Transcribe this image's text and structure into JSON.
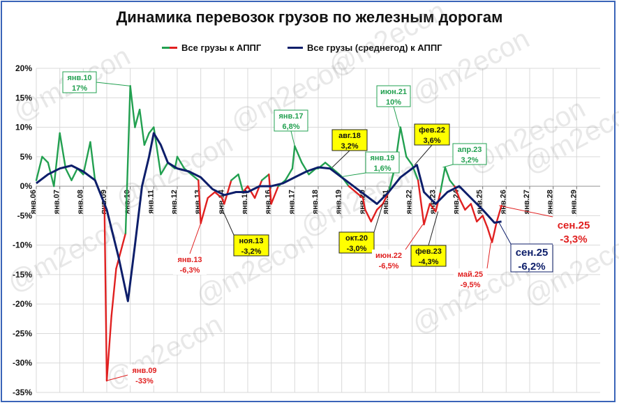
{
  "chart_data": {
    "type": "line",
    "title": "Динамика перевозок грузов по железным дорогам",
    "legend_position": "top",
    "grid": true,
    "ylim": [
      -35,
      20
    ],
    "y_ticks": [
      "20%",
      "15%",
      "10%",
      "5%",
      "0%",
      "-5%",
      "-10%",
      "-15%",
      "-20%",
      "-25%",
      "-30%",
      "-35%"
    ],
    "x_tick_labels": [
      "янв.06",
      "янв.07",
      "янв.08",
      "янв.09",
      "янв.10",
      "янв.11",
      "янв.12",
      "янв.13",
      "янв.14",
      "янв.15",
      "янв.16",
      "янв.17",
      "янв.18",
      "янв.19",
      "янв.20",
      "янв.21",
      "янв.22",
      "янв.23",
      "янв.24",
      "янв.25",
      "янв.26",
      "янв.27",
      "янв.28",
      "янв.29"
    ],
    "series": [
      {
        "name": "Все грузы к АППГ",
        "segment_colors": {
          "positive": "#22a050",
          "negative": "#e02020"
        },
        "points": [
          [
            2006.0,
            1
          ],
          [
            2006.25,
            5
          ],
          [
            2006.5,
            4
          ],
          [
            2006.75,
            0
          ],
          [
            2007.0,
            9
          ],
          [
            2007.25,
            3
          ],
          [
            2007.5,
            1
          ],
          [
            2007.75,
            3
          ],
          [
            2008.0,
            2
          ],
          [
            2008.3,
            7.5
          ],
          [
            2008.5,
            1
          ],
          [
            2008.7,
            -1
          ],
          [
            2008.9,
            -3
          ],
          [
            2009.0,
            -33
          ],
          [
            2009.2,
            -22
          ],
          [
            2009.4,
            -14
          ],
          [
            2009.6,
            -11
          ],
          [
            2009.8,
            -8
          ],
          [
            2010.0,
            17
          ],
          [
            2010.2,
            10
          ],
          [
            2010.4,
            13
          ],
          [
            2010.6,
            7
          ],
          [
            2010.8,
            9
          ],
          [
            2011.0,
            10
          ],
          [
            2011.3,
            2
          ],
          [
            2011.6,
            4
          ],
          [
            2011.9,
            3
          ],
          [
            2012.0,
            5
          ],
          [
            2012.3,
            3
          ],
          [
            2012.6,
            2
          ],
          [
            2012.9,
            1
          ],
          [
            2013.0,
            -6.3
          ],
          [
            2013.3,
            -2
          ],
          [
            2013.6,
            -1
          ],
          [
            2013.9,
            -2
          ],
          [
            2014.0,
            -3
          ],
          [
            2014.3,
            1
          ],
          [
            2014.6,
            2
          ],
          [
            2014.8,
            -1
          ],
          [
            2015.0,
            0
          ],
          [
            2015.3,
            -2
          ],
          [
            2015.6,
            1
          ],
          [
            2015.9,
            2
          ],
          [
            2016.0,
            -3
          ],
          [
            2016.3,
            0
          ],
          [
            2016.6,
            1
          ],
          [
            2016.9,
            3
          ],
          [
            2017.0,
            6.8
          ],
          [
            2017.3,
            4
          ],
          [
            2017.6,
            2
          ],
          [
            2017.9,
            3
          ],
          [
            2018.0,
            3
          ],
          [
            2018.3,
            4
          ],
          [
            2018.6,
            3
          ],
          [
            2018.9,
            2
          ],
          [
            2019.0,
            1.6
          ],
          [
            2019.3,
            0
          ],
          [
            2019.6,
            -1
          ],
          [
            2019.9,
            -2
          ],
          [
            2020.0,
            -4
          ],
          [
            2020.25,
            -6
          ],
          [
            2020.5,
            -4
          ],
          [
            2020.75,
            -3
          ],
          [
            2021.0,
            -1
          ],
          [
            2021.25,
            3
          ],
          [
            2021.5,
            10
          ],
          [
            2021.75,
            5
          ],
          [
            2022.0,
            3.6
          ],
          [
            2022.25,
            1
          ],
          [
            2022.5,
            -6.5
          ],
          [
            2022.75,
            -3
          ],
          [
            2023.0,
            -4.3
          ],
          [
            2023.2,
            -1
          ],
          [
            2023.4,
            3.2
          ],
          [
            2023.6,
            1
          ],
          [
            2023.8,
            0
          ],
          [
            2024.0,
            -2
          ],
          [
            2024.25,
            -4
          ],
          [
            2024.5,
            -3
          ],
          [
            2024.75,
            -6
          ],
          [
            2025.0,
            -5
          ],
          [
            2025.2,
            -7
          ],
          [
            2025.4,
            -9.5
          ],
          [
            2025.6,
            -6
          ],
          [
            2025.8,
            -3.3
          ]
        ]
      },
      {
        "name": "Все грузы (среднегод) к АППГ",
        "color": "#0d1e6a",
        "points": [
          [
            2006.0,
            0.5
          ],
          [
            2006.5,
            2
          ],
          [
            2007.0,
            3
          ],
          [
            2007.5,
            3.5
          ],
          [
            2008.0,
            2.5
          ],
          [
            2008.5,
            1
          ],
          [
            2009.0,
            -4
          ],
          [
            2009.5,
            -12
          ],
          [
            2009.9,
            -19.5
          ],
          [
            2010.2,
            -10
          ],
          [
            2010.5,
            0
          ],
          [
            2010.8,
            5
          ],
          [
            2011.0,
            9
          ],
          [
            2011.3,
            7
          ],
          [
            2011.6,
            4
          ],
          [
            2012.0,
            3
          ],
          [
            2012.5,
            2.5
          ],
          [
            2013.0,
            1.5
          ],
          [
            2013.5,
            -0.5
          ],
          [
            2014.0,
            -1.5
          ],
          [
            2014.5,
            -1
          ],
          [
            2015.0,
            -1
          ],
          [
            2015.5,
            0
          ],
          [
            2016.0,
            0
          ],
          [
            2016.5,
            0.5
          ],
          [
            2017.0,
            1.5
          ],
          [
            2017.5,
            2.5
          ],
          [
            2018.0,
            3.2
          ],
          [
            2018.5,
            3
          ],
          [
            2019.0,
            1.5
          ],
          [
            2019.5,
            0
          ],
          [
            2020.0,
            -1.5
          ],
          [
            2020.5,
            -3.0
          ],
          [
            2021.0,
            -1
          ],
          [
            2021.5,
            1.5
          ],
          [
            2022.0,
            3
          ],
          [
            2022.2,
            3.6
          ],
          [
            2022.5,
            -1
          ],
          [
            2023.0,
            -3
          ],
          [
            2023.5,
            -1
          ],
          [
            2024.0,
            0
          ],
          [
            2024.5,
            -2
          ],
          [
            2025.0,
            -4
          ],
          [
            2025.5,
            -6.2
          ],
          [
            2025.8,
            -6
          ]
        ]
      }
    ],
    "annotations": [
      {
        "id": "ann-jan10",
        "lines": [
          "янв.10",
          "17%"
        ],
        "x": 2010.0,
        "y": 17,
        "style": "green"
      },
      {
        "id": "ann-jan09",
        "lines": [
          "янв.09",
          "-33%"
        ],
        "x": 2009.0,
        "y": -33,
        "style": "red"
      },
      {
        "id": "ann-jan13",
        "lines": [
          "янв.13",
          "-6,3%"
        ],
        "x": 2013.0,
        "y": -6.3,
        "style": "red"
      },
      {
        "id": "ann-nov13",
        "lines": [
          "ноя.13",
          "-3,2%"
        ],
        "x": 2013.83,
        "y": -3.2,
        "style": "yellow"
      },
      {
        "id": "ann-jan17",
        "lines": [
          "янв.17",
          "6,8%"
        ],
        "x": 2017.0,
        "y": 6.8,
        "style": "green"
      },
      {
        "id": "ann-aug18",
        "lines": [
          "авг.18",
          "3,2%"
        ],
        "x": 2018.6,
        "y": 3.2,
        "style": "yellow"
      },
      {
        "id": "ann-jan19",
        "lines": [
          "янв.19",
          "1,6%"
        ],
        "x": 2019.0,
        "y": 1.6,
        "style": "green"
      },
      {
        "id": "ann-oct20",
        "lines": [
          "окт.20",
          "-3,0%"
        ],
        "x": 2020.75,
        "y": -3.0,
        "style": "yellow"
      },
      {
        "id": "ann-jun21",
        "lines": [
          "июн.21",
          "10%"
        ],
        "x": 2021.45,
        "y": 10,
        "style": "green"
      },
      {
        "id": "ann-feb22",
        "lines": [
          "фев.22",
          "3,6%"
        ],
        "x": 2022.1,
        "y": 3.6,
        "style": "yellow"
      },
      {
        "id": "ann-jun22",
        "lines": [
          "июн.22",
          "-6,5%"
        ],
        "x": 2022.45,
        "y": -6.5,
        "style": "red"
      },
      {
        "id": "ann-feb23",
        "lines": [
          "фев.23",
          "-4,3%"
        ],
        "x": 2023.1,
        "y": -4.3,
        "style": "yellow"
      },
      {
        "id": "ann-apr23",
        "lines": [
          "апр.23",
          "3,2%"
        ],
        "x": 2023.3,
        "y": 3.2,
        "style": "green"
      },
      {
        "id": "ann-may25",
        "lines": [
          "май.25",
          "-9,5%"
        ],
        "x": 2025.35,
        "y": -9.5,
        "style": "red"
      },
      {
        "id": "ann-sep25-avg",
        "lines": [
          "сен.25",
          "-6,2%"
        ],
        "x": 2025.7,
        "y": -6.2,
        "style": "navy-large"
      },
      {
        "id": "ann-sep25",
        "lines": [
          "сен.25",
          "-3,3%"
        ],
        "x": 2025.7,
        "y": -3.3,
        "style": "red-large"
      }
    ]
  },
  "colors": {
    "frame": "#3a64b8",
    "grid": "#d9d9d9",
    "green": "#22a050",
    "red": "#e02020",
    "navy": "#0d1e6a",
    "yellow": "#ffff00"
  },
  "watermark": "@m2econ"
}
